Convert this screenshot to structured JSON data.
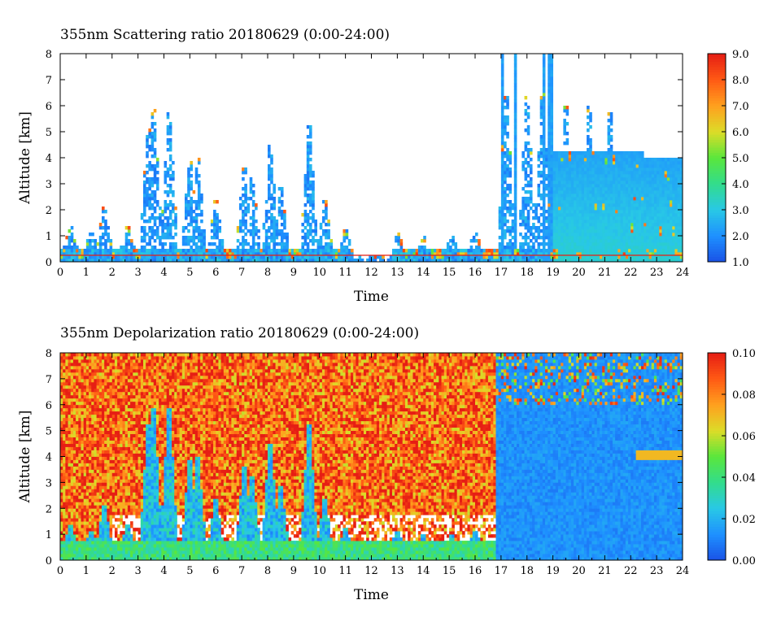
{
  "chart_data": [
    {
      "type": "heatmap",
      "title": "355nm Scattering ratio  20180629 (0:00-24:00)",
      "xlabel": "Time",
      "ylabel": "Altitude [km]",
      "xlim": [
        0,
        24
      ],
      "ylim": [
        0,
        8
      ],
      "x_ticks": [
        "0",
        "1",
        "2",
        "3",
        "4",
        "5",
        "6",
        "7",
        "8",
        "9",
        "10",
        "11",
        "12",
        "13",
        "14",
        "15",
        "16",
        "17",
        "18",
        "19",
        "20",
        "21",
        "22",
        "23",
        "24"
      ],
      "y_ticks": [
        "0",
        "1",
        "2",
        "3",
        "4",
        "5",
        "6",
        "7",
        "8"
      ],
      "colorbar": {
        "range": [
          1.0,
          9.0
        ],
        "labels": [
          "1.0",
          "2.0",
          "3.0",
          "4.0",
          "5.0",
          "6.0",
          "7.0",
          "8.0",
          "9.0"
        ],
        "colors": [
          "#1a52e6",
          "#1e90ff",
          "#28c8e6",
          "#32dc8c",
          "#5ae63c",
          "#dcdc28",
          "#ffa01e",
          "#ff5a14",
          "#e61e14"
        ]
      }
    },
    {
      "type": "heatmap",
      "title": "355nm Depolarization ratio  20180629 (0:00-24:00)",
      "xlabel": "Time",
      "ylabel": "Altitude [km]",
      "xlim": [
        0,
        24
      ],
      "ylim": [
        0,
        8
      ],
      "x_ticks": [
        "0",
        "1",
        "2",
        "3",
        "4",
        "5",
        "6",
        "7",
        "8",
        "9",
        "10",
        "11",
        "12",
        "13",
        "14",
        "15",
        "16",
        "17",
        "18",
        "19",
        "20",
        "21",
        "22",
        "23",
        "24"
      ],
      "y_ticks": [
        "0",
        "1",
        "2",
        "3",
        "4",
        "5",
        "6",
        "7",
        "8"
      ],
      "colorbar": {
        "range": [
          0.0,
          0.1
        ],
        "labels": [
          "0.00",
          "0.02",
          "0.04",
          "0.06",
          "0.08",
          "0.10"
        ],
        "colors": [
          "#1a52e6",
          "#1e90ff",
          "#28c8e6",
          "#32dc8c",
          "#5ae63c",
          "#dcdc28",
          "#ffa01e",
          "#ff5a14",
          "#e61e14"
        ]
      }
    }
  ]
}
